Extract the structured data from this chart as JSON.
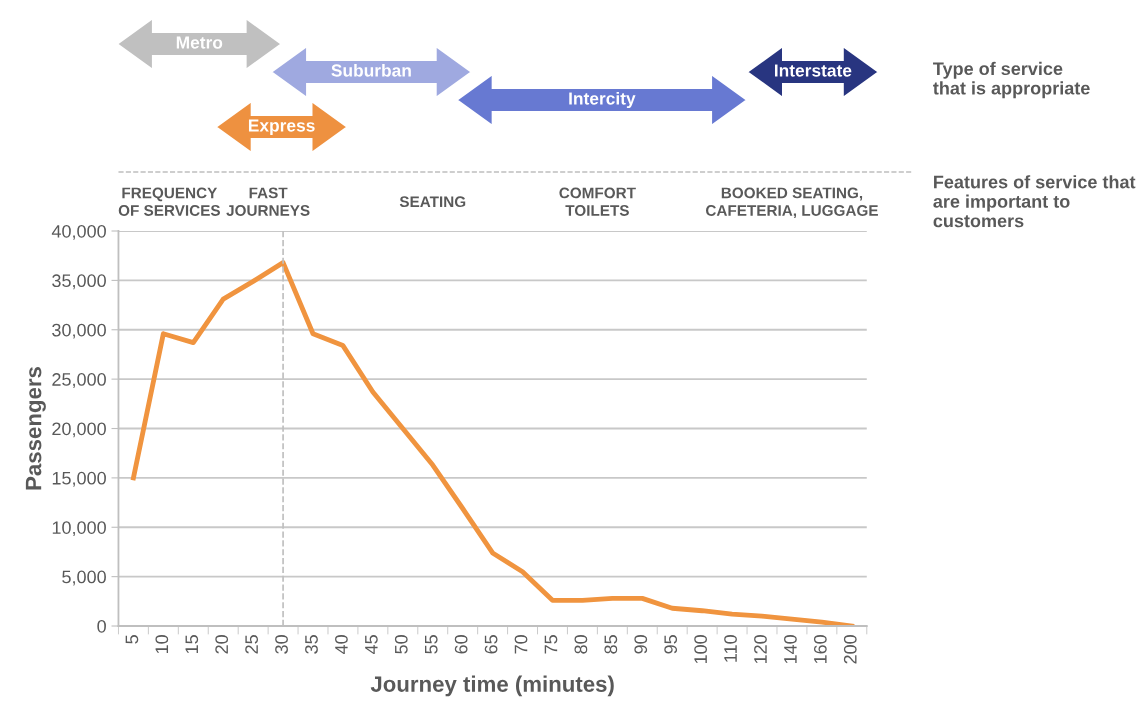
{
  "chart_data": {
    "type": "line",
    "xlabel": "Journey time (minutes)",
    "ylabel": "Passengers",
    "categories": [
      "5",
      "10",
      "15",
      "20",
      "25",
      "30",
      "35",
      "40",
      "45",
      "50",
      "55",
      "60",
      "65",
      "70",
      "75",
      "80",
      "85",
      "90",
      "95",
      "100",
      "110",
      "120",
      "140",
      "160",
      "200"
    ],
    "series": [
      {
        "color": "#f0943f",
        "values": [
          15000,
          29600,
          28700,
          33100,
          34900,
          36800,
          29600,
          28400,
          23700,
          20000,
          16300,
          11900,
          7400,
          5500,
          2600,
          2600,
          2800,
          2800,
          1800,
          1550,
          1200,
          1000,
          700,
          400,
          0
        ]
      }
    ],
    "ylim": [
      0,
      40000
    ],
    "yticks": [
      {
        "value": 0,
        "label": "0"
      },
      {
        "value": 5000,
        "label": "5,000"
      },
      {
        "value": 10000,
        "label": "10,000"
      },
      {
        "value": 15000,
        "label": "15,000"
      },
      {
        "value": 20000,
        "label": "20,000"
      },
      {
        "value": 25000,
        "label": "25,000"
      },
      {
        "value": 30000,
        "label": "30,000"
      },
      {
        "value": 35000,
        "label": "35,000"
      },
      {
        "value": 40000,
        "label": "40,000"
      }
    ],
    "grid": "y",
    "marker": "none",
    "line_style": "solid",
    "legend": false,
    "ref_lines": [
      {
        "axis": "x",
        "value": "30",
        "color": "#bfbfbf",
        "line_style": "dashed"
      }
    ],
    "annotations": [
      "Metro",
      "Suburban",
      "Express",
      "Intercity",
      "Interstate",
      "Type of service\nthat is appropriate",
      "FREQUENCY\nOF SERVICES",
      "FAST\nJOURNEYS",
      "SEATING",
      "COMFORT\nTOILETS",
      "BOOKED SEATING,\nCAFETERIA, LUGGAGE",
      "Features of service that\nare important to\ncustomers"
    ]
  }
}
